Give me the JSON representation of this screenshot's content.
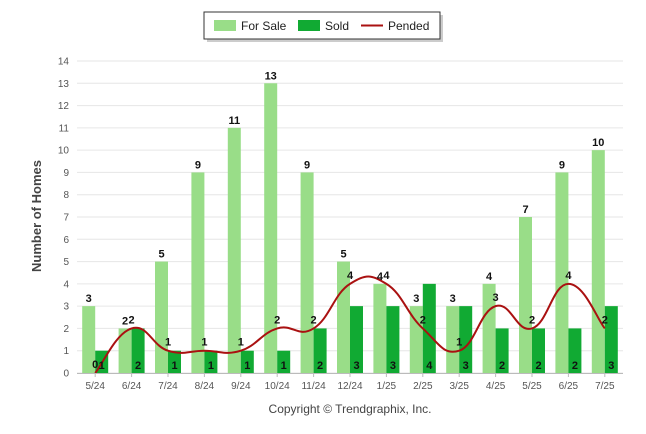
{
  "chart_data": {
    "type": "bar",
    "categories": [
      "5/24",
      "6/24",
      "7/24",
      "8/24",
      "9/24",
      "10/24",
      "11/24",
      "12/24",
      "1/25",
      "2/25",
      "3/25",
      "4/25",
      "5/25",
      "6/25",
      "7/25"
    ],
    "series": [
      {
        "name": "For Sale",
        "type": "bar",
        "color": "#99dd88",
        "values": [
          3,
          2,
          5,
          9,
          11,
          13,
          9,
          5,
          4,
          3,
          3,
          4,
          7,
          9,
          10
        ]
      },
      {
        "name": "Sold",
        "type": "bar",
        "color": "#11aa33",
        "values": [
          1,
          2,
          1,
          1,
          1,
          1,
          2,
          3,
          3,
          4,
          3,
          2,
          2,
          2,
          3
        ]
      },
      {
        "name": "Pended",
        "type": "line",
        "color": "#aa1111",
        "values": [
          0,
          2,
          1,
          1,
          1,
          2,
          2,
          4,
          4,
          2,
          1,
          3,
          2,
          4,
          2
        ]
      }
    ],
    "ylabel": "Number of Homes",
    "ylim": [
      0,
      14
    ],
    "yticks": [
      0,
      1,
      2,
      3,
      4,
      5,
      6,
      7,
      8,
      9,
      10,
      11,
      12,
      13,
      14
    ],
    "grid": true,
    "legend_position": "top-center"
  },
  "footer": {
    "copyright": "Copyright © Trendgraphix, Inc."
  }
}
